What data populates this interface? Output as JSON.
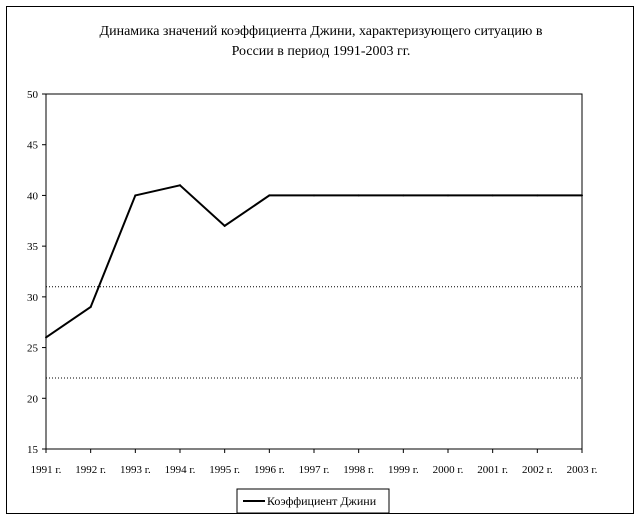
{
  "chart_data": {
    "type": "line",
    "title_line1": "Динамика значений коэффициента Джини, характеризующего ситуацию в",
    "title_line2": "России в период 1991-2003 гг.",
    "categories": [
      "1991 г.",
      "1992 г.",
      "1993 г.",
      "1994 г.",
      "1995 г.",
      "1996 г.",
      "1997 г.",
      "1998 г.",
      "1999 г.",
      "2000 г.",
      "2001 г.",
      "2002 г.",
      "2003 г."
    ],
    "series": [
      {
        "name": "Коэффициент Джини",
        "values": [
          26,
          29,
          40,
          41,
          37,
          40,
          40,
          40,
          40,
          40,
          40,
          40,
          40
        ],
        "color": "#000000"
      }
    ],
    "reference_lines": [
      31,
      22
    ],
    "ylim": [
      15,
      50
    ],
    "yticks": [
      15,
      20,
      25,
      30,
      35,
      40,
      45,
      50
    ],
    "grid": false,
    "legend_position": "bottom-center"
  }
}
